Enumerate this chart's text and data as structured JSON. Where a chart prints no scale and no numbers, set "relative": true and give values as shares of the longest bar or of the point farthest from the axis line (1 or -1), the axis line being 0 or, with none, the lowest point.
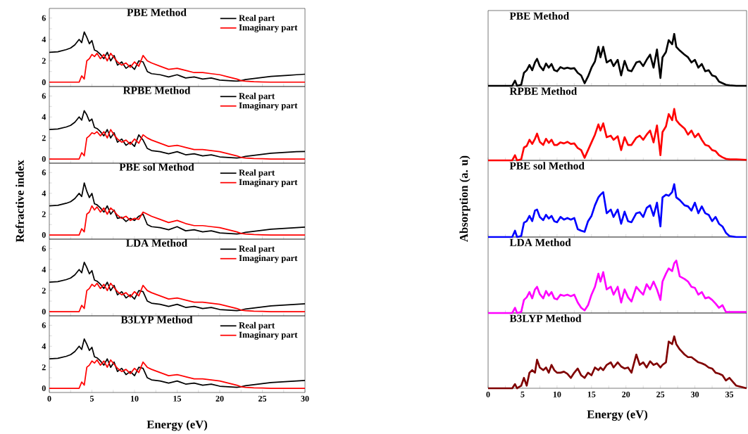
{
  "chart_data": [
    {
      "type": "line",
      "title": "PBE Method",
      "xlim": [
        0,
        30
      ],
      "ylim": [
        -0.4,
        6.9
      ],
      "xticks": [
        0,
        5,
        10,
        15,
        20,
        25,
        30
      ],
      "yticks": [
        0,
        2,
        4,
        6
      ],
      "tick_labels": "y",
      "legend": "top right",
      "x": [
        0,
        1,
        2,
        2.5,
        3,
        3.5,
        3.8,
        4.1,
        4.4,
        4.7,
        5,
        5.3,
        5.6,
        6,
        6.4,
        6.8,
        7.2,
        7.6,
        8,
        8.5,
        9,
        9.5,
        10,
        10.5,
        11,
        11.5,
        12,
        13,
        14,
        15,
        16,
        17,
        18,
        19,
        20,
        21,
        22,
        22.5,
        23,
        24,
        25,
        26,
        27,
        28,
        29,
        30
      ],
      "series": [
        {
          "name": "Real part",
          "color": "#000000",
          "values": [
            2.8,
            2.85,
            3.05,
            3.2,
            3.5,
            4.0,
            3.7,
            4.7,
            4.2,
            3.6,
            3.9,
            3.0,
            2.9,
            2.6,
            2.2,
            2.8,
            2.0,
            2.5,
            1.6,
            1.9,
            1.3,
            1.6,
            1.2,
            2.0,
            1.9,
            1.0,
            0.8,
            0.7,
            0.5,
            0.7,
            0.4,
            0.5,
            0.3,
            0.4,
            0.2,
            0.15,
            0.1,
            0.15,
            0.25,
            0.35,
            0.45,
            0.55,
            0.6,
            0.65,
            0.7,
            0.75
          ]
        },
        {
          "name": "Imaginary part",
          "color": "#ff0000",
          "values": [
            0,
            0,
            0,
            0,
            0,
            0,
            0.6,
            0.3,
            2.0,
            2.2,
            2.6,
            2.4,
            2.7,
            2.2,
            2.6,
            2.0,
            2.7,
            2.3,
            1.9,
            1.6,
            1.8,
            1.4,
            1.9,
            1.5,
            2.5,
            2.0,
            1.8,
            1.5,
            1.2,
            1.3,
            1.1,
            0.9,
            0.9,
            0.8,
            0.7,
            0.5,
            0.3,
            0.15,
            0.1,
            0.05,
            0.02,
            0,
            0,
            0,
            0,
            0
          ]
        }
      ]
    },
    {
      "type": "line",
      "title": "RPBE Method",
      "xlim": [
        0,
        30
      ],
      "ylim": [
        -0.4,
        6.9
      ],
      "xticks": [
        0,
        5,
        10,
        15,
        20,
        25,
        30
      ],
      "yticks": [
        0,
        2,
        4,
        6
      ],
      "tick_labels": "y",
      "legend": "top right",
      "x": [
        0,
        1,
        2,
        2.5,
        3,
        3.5,
        3.8,
        4.1,
        4.4,
        4.7,
        5,
        5.3,
        5.6,
        6,
        6.4,
        6.8,
        7.2,
        7.6,
        8,
        8.5,
        9,
        9.5,
        10,
        10.5,
        11,
        11.5,
        12,
        13,
        14,
        15,
        16,
        17,
        18,
        19,
        20,
        21,
        22,
        22.5,
        23,
        24,
        25,
        26,
        27,
        28,
        29,
        30
      ],
      "series": [
        {
          "name": "Real part",
          "color": "#000000",
          "values": [
            2.8,
            2.85,
            3.05,
            3.2,
            3.5,
            4.0,
            3.7,
            4.6,
            4.2,
            3.6,
            3.8,
            3.0,
            2.9,
            2.6,
            2.2,
            2.8,
            2.0,
            2.5,
            1.6,
            1.9,
            1.3,
            1.6,
            1.2,
            2.3,
            1.8,
            1.0,
            0.8,
            0.7,
            0.5,
            0.7,
            0.4,
            0.5,
            0.3,
            0.4,
            0.2,
            0.15,
            0.1,
            0.15,
            0.25,
            0.35,
            0.45,
            0.55,
            0.6,
            0.65,
            0.7,
            0.72
          ]
        },
        {
          "name": "Imaginary part",
          "color": "#ff0000",
          "values": [
            0,
            0,
            0,
            0,
            0,
            0,
            0.6,
            0.3,
            2.0,
            2.2,
            2.5,
            2.4,
            2.6,
            2.2,
            2.6,
            2.0,
            2.8,
            2.3,
            1.9,
            1.6,
            1.8,
            1.4,
            1.9,
            1.5,
            2.3,
            2.0,
            1.8,
            1.5,
            1.2,
            1.3,
            1.1,
            0.9,
            0.9,
            0.8,
            0.7,
            0.5,
            0.3,
            0.15,
            0.1,
            0.05,
            0.02,
            0,
            0,
            0,
            0,
            0
          ]
        }
      ]
    },
    {
      "type": "line",
      "title": "PBE sol Method",
      "ylabel": "Refractive index",
      "xlim": [
        0,
        30
      ],
      "ylim": [
        -0.4,
        6.9
      ],
      "xticks": [
        0,
        5,
        10,
        15,
        20,
        25,
        30
      ],
      "yticks": [
        0,
        2,
        4,
        6
      ],
      "tick_labels": "y",
      "legend": "top right",
      "x": [
        0,
        1,
        2,
        2.5,
        3,
        3.5,
        3.8,
        4.1,
        4.4,
        4.7,
        5,
        5.3,
        5.6,
        6,
        6.4,
        6.8,
        7.2,
        7.6,
        8,
        8.5,
        9,
        9.5,
        10,
        10.5,
        11,
        11.5,
        12,
        13,
        14,
        15,
        16,
        17,
        18,
        19,
        20,
        21,
        22,
        22.5,
        23,
        24,
        25,
        26,
        27,
        28,
        29,
        30
      ],
      "series": [
        {
          "name": "Real part",
          "color": "#000000",
          "values": [
            2.8,
            2.85,
            3.05,
            3.2,
            3.5,
            4.0,
            3.7,
            5.0,
            4.2,
            3.6,
            4.0,
            3.0,
            2.9,
            2.6,
            2.2,
            2.8,
            2.0,
            2.4,
            1.6,
            1.7,
            1.3,
            1.6,
            1.4,
            1.8,
            2.0,
            1.0,
            0.8,
            0.7,
            0.5,
            0.8,
            0.4,
            0.5,
            0.3,
            0.4,
            0.2,
            0.15,
            0.1,
            0.15,
            0.25,
            0.35,
            0.45,
            0.55,
            0.6,
            0.65,
            0.7,
            0.75
          ]
        },
        {
          "name": "Imaginary part",
          "color": "#ff0000",
          "values": [
            0,
            0,
            0,
            0,
            0,
            0,
            0.6,
            0.3,
            2.0,
            2.2,
            2.8,
            2.4,
            2.7,
            2.2,
            2.6,
            2.0,
            2.6,
            2.3,
            1.9,
            1.6,
            1.8,
            1.4,
            1.6,
            1.5,
            2.2,
            2.0,
            1.8,
            1.5,
            1.2,
            1.4,
            1.1,
            0.9,
            0.9,
            0.8,
            0.7,
            0.5,
            0.3,
            0.15,
            0.1,
            0.05,
            0.02,
            0,
            0,
            0,
            0,
            0
          ]
        }
      ]
    },
    {
      "type": "line",
      "title": "LDA Method",
      "xlim": [
        0,
        30
      ],
      "ylim": [
        -0.4,
        6.9
      ],
      "xticks": [
        0,
        5,
        10,
        15,
        20,
        25,
        30
      ],
      "yticks": [
        0,
        2,
        4,
        6
      ],
      "tick_labels": "y",
      "legend": "top right",
      "x": [
        0,
        1,
        2,
        2.5,
        3,
        3.5,
        3.8,
        4.1,
        4.4,
        4.7,
        5,
        5.3,
        5.6,
        6,
        6.4,
        6.8,
        7.2,
        7.6,
        8,
        8.5,
        9,
        9.5,
        10,
        10.5,
        11,
        11.5,
        12,
        13,
        14,
        15,
        16,
        17,
        18,
        19,
        20,
        21,
        22,
        22.5,
        23,
        24,
        25,
        26,
        27,
        28,
        29,
        30
      ],
      "series": [
        {
          "name": "Real part",
          "color": "#000000",
          "values": [
            2.8,
            2.85,
            3.05,
            3.2,
            3.5,
            4.0,
            3.7,
            4.7,
            4.2,
            3.6,
            3.9,
            3.0,
            2.9,
            2.6,
            2.2,
            2.8,
            2.0,
            2.5,
            1.6,
            1.9,
            1.3,
            1.6,
            1.2,
            2.0,
            1.9,
            1.0,
            0.8,
            0.7,
            0.5,
            0.7,
            0.4,
            0.5,
            0.3,
            0.4,
            0.2,
            0.15,
            0.1,
            0.15,
            0.25,
            0.35,
            0.45,
            0.55,
            0.6,
            0.65,
            0.7,
            0.75
          ]
        },
        {
          "name": "Imaginary part",
          "color": "#ff0000",
          "values": [
            0,
            0,
            0,
            0,
            0,
            0,
            0.6,
            0.3,
            2.0,
            2.2,
            2.6,
            2.4,
            2.7,
            2.2,
            2.6,
            2.0,
            2.7,
            2.3,
            1.9,
            1.6,
            1.8,
            1.4,
            1.9,
            1.5,
            2.5,
            2.0,
            1.8,
            1.5,
            1.2,
            1.3,
            1.1,
            0.9,
            0.9,
            0.8,
            0.7,
            0.5,
            0.3,
            0.15,
            0.1,
            0.05,
            0.02,
            0,
            0,
            0,
            0,
            0
          ]
        }
      ]
    },
    {
      "type": "line",
      "title": "B3LYP Method",
      "xlabel": "Energy (eV)",
      "xlim": [
        0,
        30
      ],
      "ylim": [
        -0.4,
        6.9
      ],
      "xticks": [
        0,
        5,
        10,
        15,
        20,
        25,
        30
      ],
      "yticks": [
        0,
        2,
        4,
        6
      ],
      "legend": "top right",
      "x": [
        0,
        1,
        2,
        2.5,
        3,
        3.5,
        3.8,
        4.1,
        4.4,
        4.7,
        5,
        5.3,
        5.6,
        6,
        6.4,
        6.8,
        7.2,
        7.6,
        8,
        8.5,
        9,
        9.5,
        10,
        10.5,
        11,
        11.5,
        12,
        13,
        14,
        15,
        16,
        17,
        18,
        19,
        20,
        21,
        22,
        22.5,
        23,
        24,
        25,
        26,
        27,
        28,
        29,
        30
      ],
      "series": [
        {
          "name": "Real part",
          "color": "#000000",
          "values": [
            2.8,
            2.85,
            3.05,
            3.2,
            3.5,
            4.0,
            3.7,
            4.7,
            4.2,
            3.6,
            3.9,
            3.0,
            2.9,
            2.6,
            2.2,
            2.8,
            2.0,
            2.5,
            1.6,
            1.9,
            1.3,
            1.6,
            1.2,
            2.0,
            1.9,
            1.0,
            0.8,
            0.7,
            0.5,
            0.7,
            0.4,
            0.5,
            0.3,
            0.4,
            0.2,
            0.15,
            0.1,
            0.15,
            0.25,
            0.35,
            0.45,
            0.55,
            0.6,
            0.65,
            0.7,
            0.75
          ]
        },
        {
          "name": "Imaginary part",
          "color": "#ff0000",
          "values": [
            0,
            0,
            0,
            0,
            0,
            0,
            0.6,
            0.3,
            2.0,
            2.2,
            2.6,
            2.4,
            2.7,
            2.2,
            2.6,
            2.0,
            2.7,
            2.3,
            1.9,
            1.6,
            1.8,
            1.4,
            1.9,
            1.5,
            2.5,
            2.0,
            1.8,
            1.5,
            1.2,
            1.3,
            1.1,
            0.9,
            0.9,
            0.8,
            0.7,
            0.5,
            0.3,
            0.15,
            0.1,
            0.05,
            0.02,
            0,
            0,
            0,
            0,
            0
          ]
        }
      ]
    },
    {
      "type": "line",
      "title": "PBE Method",
      "relative": true,
      "color": "#000000",
      "xlim": [
        0,
        37.5
      ],
      "xticks": [
        0,
        5,
        10,
        15,
        20,
        25,
        30,
        35
      ],
      "tick_labels": false,
      "x": [
        0,
        3.5,
        3.9,
        4.2,
        4.8,
        5.2,
        5.6,
        6,
        6.4,
        6.8,
        7.1,
        7.5,
        8,
        8.4,
        8.8,
        9.2,
        9.6,
        10,
        10.5,
        11,
        11.5,
        12,
        12.5,
        13,
        13.5,
        14,
        14.5,
        15,
        15.5,
        16,
        16.3,
        16.7,
        17.2,
        17.8,
        18.2,
        18.8,
        19.3,
        19.8,
        20.3,
        20.8,
        21.5,
        22,
        22.5,
        23,
        23.5,
        24,
        24.5,
        25,
        25.3,
        25.8,
        26.2,
        26.7,
        27,
        27.3,
        27.8,
        28.5,
        29,
        29.5,
        30,
        30.5,
        31,
        31.5,
        32,
        32.5,
        33,
        33.5,
        34,
        34.5,
        35,
        36,
        37.5
      ],
      "values": [
        0,
        0,
        0.1,
        0,
        0.02,
        0.25,
        0.3,
        0.4,
        0.3,
        0.45,
        0.52,
        0.38,
        0.3,
        0.43,
        0.35,
        0.42,
        0.3,
        0.28,
        0.36,
        0.33,
        0.35,
        0.33,
        0.34,
        0.25,
        0.2,
        0.05,
        0.18,
        0.35,
        0.47,
        0.75,
        0.55,
        0.75,
        0.45,
        0.5,
        0.38,
        0.5,
        0.2,
        0.48,
        0.3,
        0.28,
        0.45,
        0.47,
        0.38,
        0.5,
        0.6,
        0.35,
        0.7,
        0.15,
        0.55,
        0.65,
        0.88,
        0.8,
        1,
        0.75,
        0.68,
        0.6,
        0.55,
        0.45,
        0.5,
        0.35,
        0.42,
        0.28,
        0.3,
        0.2,
        0.18,
        0.08,
        0.05,
        0.02,
        0.01,
        0,
        0
      ]
    },
    {
      "type": "line",
      "title": "RPBE Method",
      "relative": true,
      "color": "#ff0000",
      "xlim": [
        0,
        37.5
      ],
      "xticks": [
        0,
        5,
        10,
        15,
        20,
        25,
        30,
        35
      ],
      "tick_labels": false,
      "x": [
        0,
        3.5,
        3.9,
        4.2,
        4.8,
        5.2,
        5.6,
        6,
        6.4,
        6.8,
        7.1,
        7.5,
        8,
        8.4,
        8.8,
        9.2,
        9.6,
        10,
        10.5,
        11,
        11.5,
        12,
        12.5,
        13,
        13.5,
        14,
        14.5,
        15,
        15.5,
        16,
        16.3,
        16.7,
        17.2,
        17.8,
        18.2,
        18.8,
        19.3,
        19.8,
        20.3,
        20.8,
        21.5,
        22,
        22.5,
        23,
        23.5,
        24,
        24.5,
        25,
        25.3,
        25.8,
        26.2,
        26.7,
        27,
        27.3,
        27.8,
        28.5,
        29,
        29.5,
        30,
        30.5,
        31,
        31.5,
        32,
        32.5,
        33,
        33.5,
        34,
        34.5,
        35,
        36,
        37.5
      ],
      "values": [
        0,
        0,
        0.1,
        0,
        0.02,
        0.25,
        0.28,
        0.4,
        0.32,
        0.42,
        0.52,
        0.36,
        0.3,
        0.42,
        0.34,
        0.4,
        0.3,
        0.3,
        0.35,
        0.33,
        0.36,
        0.32,
        0.33,
        0.24,
        0.2,
        0.05,
        0.2,
        0.35,
        0.5,
        0.7,
        0.58,
        0.72,
        0.45,
        0.48,
        0.4,
        0.47,
        0.2,
        0.45,
        0.3,
        0.3,
        0.44,
        0.48,
        0.4,
        0.5,
        0.58,
        0.35,
        0.68,
        0.1,
        0.55,
        0.66,
        0.9,
        0.78,
        1,
        0.78,
        0.7,
        0.62,
        0.5,
        0.58,
        0.45,
        0.52,
        0.4,
        0.3,
        0.28,
        0.2,
        0.18,
        0.1,
        0.06,
        0.03,
        0.02,
        0.02,
        0.01
      ]
    },
    {
      "type": "line",
      "title": "PBE sol Method",
      "ylabel": "Absorption (a. u)",
      "relative": true,
      "color": "#0000ff",
      "xlim": [
        0,
        37.5
      ],
      "xticks": [
        0,
        5,
        10,
        15,
        20,
        25,
        30,
        35
      ],
      "tick_labels": false,
      "x": [
        0,
        3.5,
        3.9,
        4.2,
        4.8,
        5.2,
        5.6,
        6,
        6.4,
        6.8,
        7.1,
        7.5,
        8,
        8.4,
        8.8,
        9.2,
        9.6,
        10,
        10.5,
        11,
        11.5,
        12,
        12.5,
        13,
        13.5,
        14,
        14.5,
        15,
        15.5,
        16,
        16.3,
        16.7,
        17.2,
        17.8,
        18.2,
        18.8,
        19.3,
        19.8,
        20.3,
        20.8,
        21.5,
        22,
        22.5,
        23,
        23.5,
        24,
        24.5,
        25,
        25.3,
        25.8,
        26.2,
        26.7,
        27,
        27.3,
        27.8,
        28.5,
        29,
        29.5,
        30,
        30.5,
        31,
        31.5,
        32,
        32.5,
        33,
        33.5,
        34,
        34.5,
        35,
        36,
        37.5
      ],
      "values": [
        0,
        0,
        0.12,
        0,
        0.02,
        0.27,
        0.3,
        0.4,
        0.3,
        0.5,
        0.52,
        0.38,
        0.32,
        0.42,
        0.35,
        0.4,
        0.3,
        0.28,
        0.38,
        0.33,
        0.36,
        0.33,
        0.36,
        0.15,
        0.12,
        0.1,
        0.3,
        0.4,
        0.6,
        0.75,
        0.8,
        0.85,
        0.45,
        0.52,
        0.38,
        0.52,
        0.25,
        0.48,
        0.3,
        0.28,
        0.45,
        0.47,
        0.38,
        0.55,
        0.6,
        0.4,
        0.65,
        0.2,
        0.75,
        0.8,
        0.78,
        0.85,
        1,
        0.75,
        0.7,
        0.6,
        0.58,
        0.5,
        0.65,
        0.45,
        0.58,
        0.45,
        0.42,
        0.3,
        0.38,
        0.25,
        0.2,
        0.08,
        0.02,
        0,
        0
      ]
    },
    {
      "type": "line",
      "title": "LDA Method",
      "relative": true,
      "color": "#ff00ff",
      "xlim": [
        0,
        37.5
      ],
      "xticks": [
        0,
        5,
        10,
        15,
        20,
        25,
        30,
        35
      ],
      "tick_labels": false,
      "x": [
        0,
        3.5,
        3.9,
        4.2,
        4.8,
        5.2,
        5.6,
        6,
        6.4,
        6.8,
        7.1,
        7.5,
        8,
        8.4,
        8.8,
        9.2,
        9.6,
        10,
        10.5,
        11,
        11.5,
        12,
        12.5,
        13,
        13.5,
        14,
        14.5,
        15,
        15.5,
        16,
        16.3,
        16.7,
        17.2,
        17.8,
        18.2,
        18.8,
        19.3,
        19.8,
        20.3,
        20.8,
        21.5,
        22,
        22.5,
        23,
        23.5,
        24,
        24.5,
        25,
        25.3,
        25.8,
        26.2,
        26.7,
        27,
        27.3,
        27.8,
        28.5,
        29,
        29.5,
        30,
        30.5,
        31,
        31.5,
        32,
        32.5,
        33,
        33.5,
        34,
        34.5,
        35,
        36,
        37.5
      ],
      "values": [
        0,
        0,
        0.1,
        0,
        0.02,
        0.25,
        0.3,
        0.4,
        0.28,
        0.45,
        0.5,
        0.36,
        0.28,
        0.42,
        0.33,
        0.4,
        0.28,
        0.26,
        0.35,
        0.33,
        0.35,
        0.32,
        0.35,
        0.2,
        0.1,
        0.05,
        0.15,
        0.35,
        0.5,
        0.75,
        0.6,
        0.78,
        0.45,
        0.5,
        0.35,
        0.5,
        0.2,
        0.45,
        0.3,
        0.22,
        0.5,
        0.42,
        0.35,
        0.55,
        0.45,
        0.6,
        0.45,
        0.25,
        0.6,
        0.75,
        0.85,
        0.8,
        0.95,
        1,
        0.7,
        0.65,
        0.6,
        0.5,
        0.48,
        0.35,
        0.4,
        0.28,
        0.3,
        0.25,
        0.18,
        0.1,
        0.15,
        0.02,
        0.02,
        0.02,
        0.02
      ]
    },
    {
      "type": "line",
      "title": "B3LYP Method",
      "xlabel": "Energy (eV)",
      "relative": true,
      "color": "#800000",
      "xlim": [
        0,
        37.5
      ],
      "xticks": [
        0,
        5,
        10,
        15,
        20,
        25,
        30,
        35
      ],
      "tick_labels": "x",
      "x": [
        0,
        3.5,
        3.9,
        4.2,
        4.8,
        5.2,
        5.6,
        6,
        6.4,
        6.8,
        7.1,
        7.5,
        8,
        8.4,
        8.8,
        9.2,
        9.6,
        10,
        10.5,
        11,
        11.5,
        12,
        12.5,
        13,
        13.5,
        14,
        14.5,
        15,
        15.5,
        16,
        16.3,
        16.7,
        17.2,
        17.8,
        18.2,
        18.8,
        19.3,
        19.8,
        20.3,
        20.8,
        21.5,
        22,
        22.5,
        23,
        23.5,
        24,
        24.5,
        25,
        25.3,
        25.8,
        26.2,
        26.7,
        27,
        27.3,
        27.8,
        28.5,
        29,
        29.5,
        30,
        30.5,
        31,
        31.5,
        32,
        32.5,
        33,
        33.5,
        34,
        34.5,
        35,
        36,
        37.5
      ],
      "values": [
        0,
        0,
        0.08,
        0,
        0.05,
        0.2,
        0.05,
        0.3,
        0.35,
        0.3,
        0.55,
        0.4,
        0.35,
        0.4,
        0.3,
        0.45,
        0.35,
        0.3,
        0.3,
        0.32,
        0.28,
        0.2,
        0.3,
        0.38,
        0.25,
        0.2,
        0.3,
        0.25,
        0.4,
        0.35,
        0.4,
        0.35,
        0.45,
        0.5,
        0.4,
        0.5,
        0.42,
        0.38,
        0.4,
        0.3,
        0.65,
        0.45,
        0.5,
        0.4,
        0.52,
        0.45,
        0.48,
        0.4,
        0.45,
        0.5,
        0.9,
        0.85,
        1,
        0.85,
        0.75,
        0.65,
        0.6,
        0.6,
        0.55,
        0.5,
        0.48,
        0.45,
        0.4,
        0.38,
        0.3,
        0.28,
        0.25,
        0.15,
        0.2,
        0.05,
        0
      ]
    }
  ]
}
